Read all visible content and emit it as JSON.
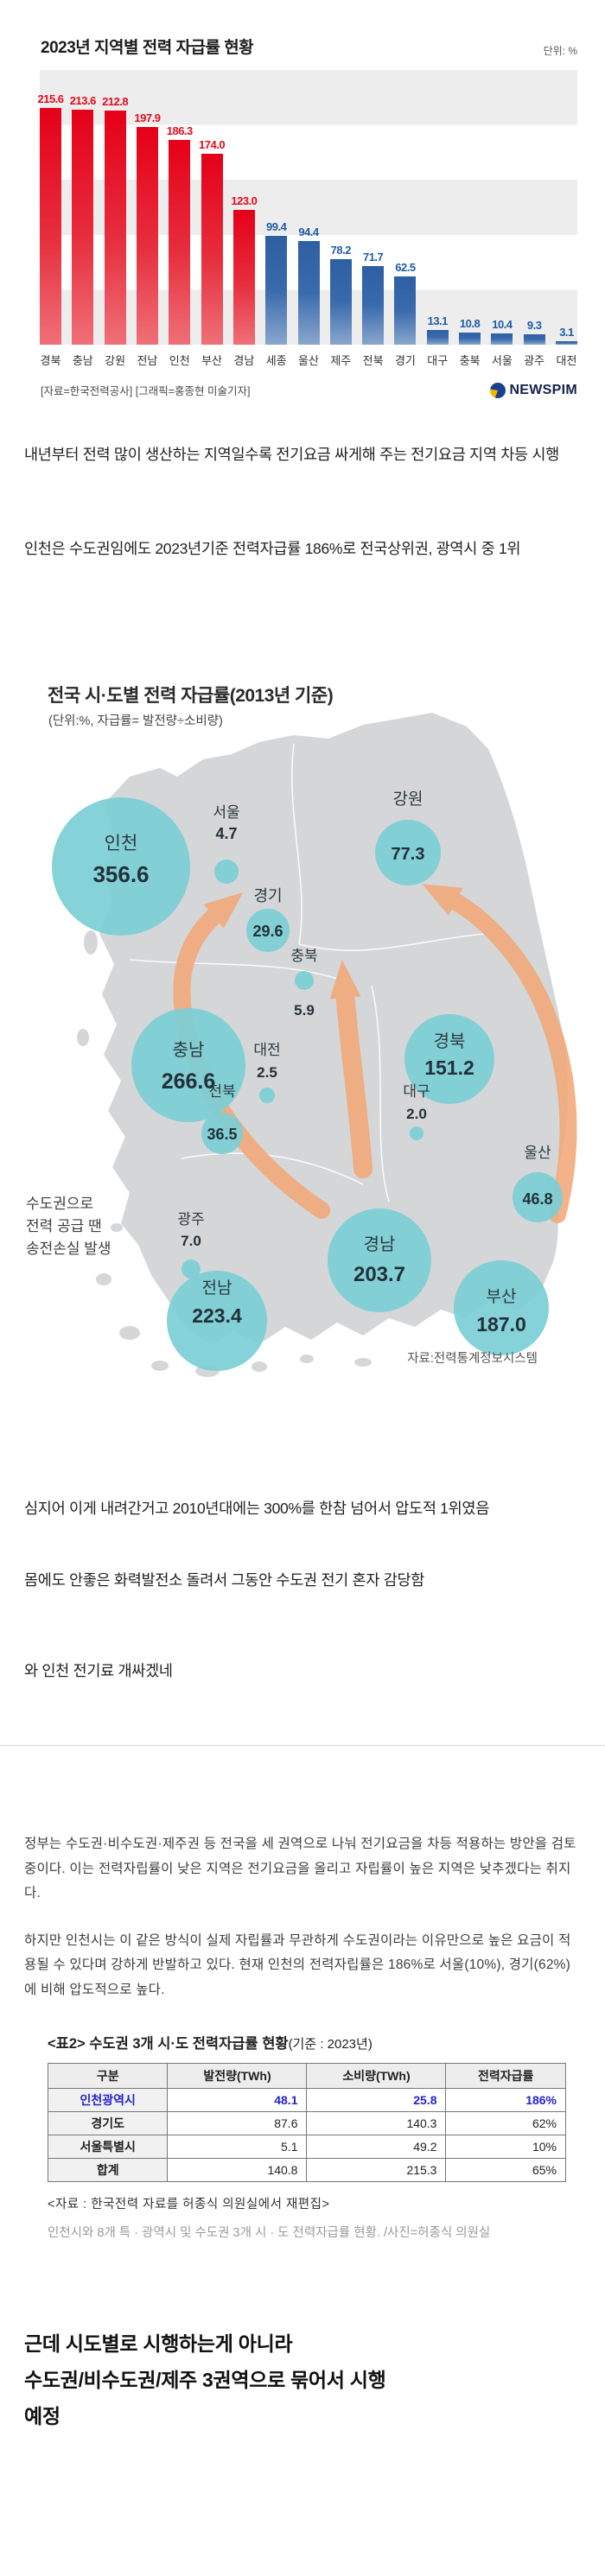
{
  "chart_data": [
    {
      "type": "bar",
      "title": "2023년 지역별 전력 자급률 현황",
      "unit_label": "단위: %",
      "source_label": "[자료=한국전력공사] [그래픽=홍종현 미술기자]",
      "brand": "NEWSPIM",
      "ylim": [
        0,
        250
      ],
      "grid_bands": "50단위 회색 줄무늬",
      "bars": [
        {
          "region": "경북",
          "value": 215.6,
          "color": "red"
        },
        {
          "region": "충남",
          "value": 213.6,
          "color": "red"
        },
        {
          "region": "강원",
          "value": 212.8,
          "color": "red"
        },
        {
          "region": "전남",
          "value": 197.9,
          "color": "red"
        },
        {
          "region": "인천",
          "value": 186.3,
          "color": "red"
        },
        {
          "region": "부산",
          "value": 174.0,
          "color": "red"
        },
        {
          "region": "경남",
          "value": 123.0,
          "color": "red"
        },
        {
          "region": "세종",
          "value": 99.4,
          "color": "blue"
        },
        {
          "region": "울산",
          "value": 94.4,
          "color": "blue"
        },
        {
          "region": "제주",
          "value": 78.2,
          "color": "blue"
        },
        {
          "region": "전북",
          "value": 71.7,
          "color": "blue"
        },
        {
          "region": "경기",
          "value": 62.5,
          "color": "blue"
        },
        {
          "region": "대구",
          "value": 13.1,
          "color": "blue"
        },
        {
          "region": "충북",
          "value": 10.8,
          "color": "blue"
        },
        {
          "region": "서울",
          "value": 10.4,
          "color": "blue"
        },
        {
          "region": "광주",
          "value": 9.3,
          "color": "blue"
        },
        {
          "region": "대전",
          "value": 3.1,
          "color": "blue"
        }
      ]
    },
    {
      "type": "bubble_map",
      "title": "전국 시·도별 전력 자급률(2013년 기준)",
      "subtitle": "(단위:%, 자급률= 발전량÷소비량)",
      "annotation_lines": [
        "수도권으로",
        "전력 공급 땐",
        "송전손실 발생"
      ],
      "source": "자료:전력통계정보시스템",
      "bubbles": [
        {
          "name": "인천",
          "value": 356.6,
          "cx": 140,
          "cy": 222,
          "r": 80,
          "name_y": 202,
          "value_y": 240,
          "fs_name": 21,
          "fs_value": 26
        },
        {
          "name": "서울",
          "value": 4.7,
          "cx": 262,
          "cy": 228,
          "r": 14,
          "name_y": 165,
          "value_y": 190,
          "fs_name": 17,
          "fs_value": 18
        },
        {
          "name": "경기",
          "value": 29.6,
          "cx": 310,
          "cy": 296,
          "r": 25,
          "name_y": 262,
          "value_y": 303,
          "fs_name": 18,
          "fs_value": 18
        },
        {
          "name": "강원",
          "value": 77.3,
          "cx": 472,
          "cy": 206,
          "r": 38,
          "name_y": 150,
          "value_y": 214,
          "fs_name": 19,
          "fs_value": 20
        },
        {
          "name": "충북",
          "value": 5.9,
          "cx": 352,
          "cy": 354,
          "r": 11,
          "name_y": 331,
          "value_y": 394,
          "fs_name": 17,
          "fs_value": 17
        },
        {
          "name": "충남",
          "value": 266.6,
          "cx": 218,
          "cy": 452,
          "r": 66,
          "name_y": 441,
          "value_y": 479,
          "fs_name": 20,
          "fs_value": 25
        },
        {
          "name": "대전",
          "value": 2.5,
          "cx": 309,
          "cy": 487,
          "r": 9,
          "name_y": 440,
          "value_y": 466,
          "fs_name": 17,
          "fs_value": 17
        },
        {
          "name": "경북",
          "value": 151.2,
          "cx": 520,
          "cy": 445,
          "r": 52,
          "name_y": 431,
          "value_y": 463,
          "fs_name": 20,
          "fs_value": 23
        },
        {
          "name": "전북",
          "value": 36.5,
          "cx": 257,
          "cy": 531,
          "r": 24,
          "name_y": 488,
          "value_y": 538,
          "fs_name": 17,
          "fs_value": 18
        },
        {
          "name": "대구",
          "value": 2.0,
          "cx": 482,
          "cy": 531,
          "r": 8,
          "name_y": 488,
          "value_y": 514,
          "fs_name": 17,
          "fs_value": 17
        },
        {
          "name": "울산",
          "value": 46.8,
          "cx": 622,
          "cy": 605,
          "r": 29,
          "name_y": 559,
          "value_y": 613,
          "fs_name": 17,
          "fs_value": 18
        },
        {
          "name": "광주",
          "value": 7.0,
          "cx": 221,
          "cy": 688,
          "r": 11,
          "name_y": 636,
          "value_y": 661,
          "fs_name": 17,
          "fs_value": 17
        },
        {
          "name": "경남",
          "value": 203.7,
          "cx": 439,
          "cy": 678,
          "r": 60,
          "name_y": 666,
          "value_y": 702,
          "fs_name": 20,
          "fs_value": 24
        },
        {
          "name": "부산",
          "value": 187.0,
          "cx": 580,
          "cy": 733,
          "r": 55,
          "name_y": 726,
          "value_y": 760,
          "fs_name": 19,
          "fs_value": 23
        },
        {
          "name": "전남",
          "value": 223.4,
          "cx": 251,
          "cy": 748,
          "r": 58,
          "name_y": 716,
          "value_y": 750,
          "fs_name": 19,
          "fs_value": 23
        }
      ]
    }
  ],
  "comments": {
    "p1": "내년부터 전력 많이 생산하는 지역일수록 전기요금 싸게해 주는 전기요금 지역 차등 시행",
    "p2": "인천은 수도권임에도 2023년기준 전력자급률 186%로 전국상위권, 광역시 중 1위",
    "p3": "심지어 이게 내려간거고 2010년대에는 300%를 한참 넘어서 압도적 1위였음",
    "p4": "몸에도 안좋은 화력발전소 돌려서 그동안 수도권 전기 혼자 감당함",
    "p5": "와 인천 전기료 개싸겠네",
    "p6_lines": [
      "근데 시도별로 시행하는게 아니라",
      "수도권/비수도권/제주 3권역으로 묶어서 시행",
      "예정"
    ]
  },
  "article": {
    "paragraphs": [
      "정부는 수도권·비수도권·제주권 등 전국을 세 권역으로 나눠 전기요금을 차등 적용하는 방안을 검토 중이다. 이는 전력자립률이 낮은 지역은 전기요금을 올리고 자립률이 높은 지역은 낮추겠다는 취지다.",
      "하지만 인천시는 이 같은 방식이 실제 자립률과 무관하게 수도권이라는 이유만으로 높은 요금이 적용될 수 있다며 강하게 반발하고 있다. 현재 인천의 전력자립률은 186%로 서울(10%), 경기(62%)에 비해 압도적으로 높다."
    ],
    "table_title_main": "<표2> 수도권 3개 시·도 전력자급률 현황",
    "table_title_sub": "(기준 : 2023년)",
    "table": {
      "headers": [
        "구분",
        "발전량(TWh)",
        "소비량(TWh)",
        "전력자급률"
      ],
      "rows": [
        {
          "cells": [
            "인천광역시",
            "48.1",
            "25.8",
            "186%"
          ],
          "highlight": true
        },
        {
          "cells": [
            "경기도",
            "87.6",
            "140.3",
            "62%"
          ],
          "highlight": false
        },
        {
          "cells": [
            "서울특별시",
            "5.1",
            "49.2",
            "10%"
          ],
          "highlight": false
        },
        {
          "cells": [
            "합계",
            "140.8",
            "215.3",
            "65%"
          ],
          "highlight": false
        }
      ]
    },
    "table_source": "<자료 : 한국전력 자료를 허종식 의원실에서 재편집>",
    "caption": "인천시와 8개 특 · 광역시 및 수도권 3개 시 · 도 전력자급률 현황. /사진=허종식 의원실"
  }
}
